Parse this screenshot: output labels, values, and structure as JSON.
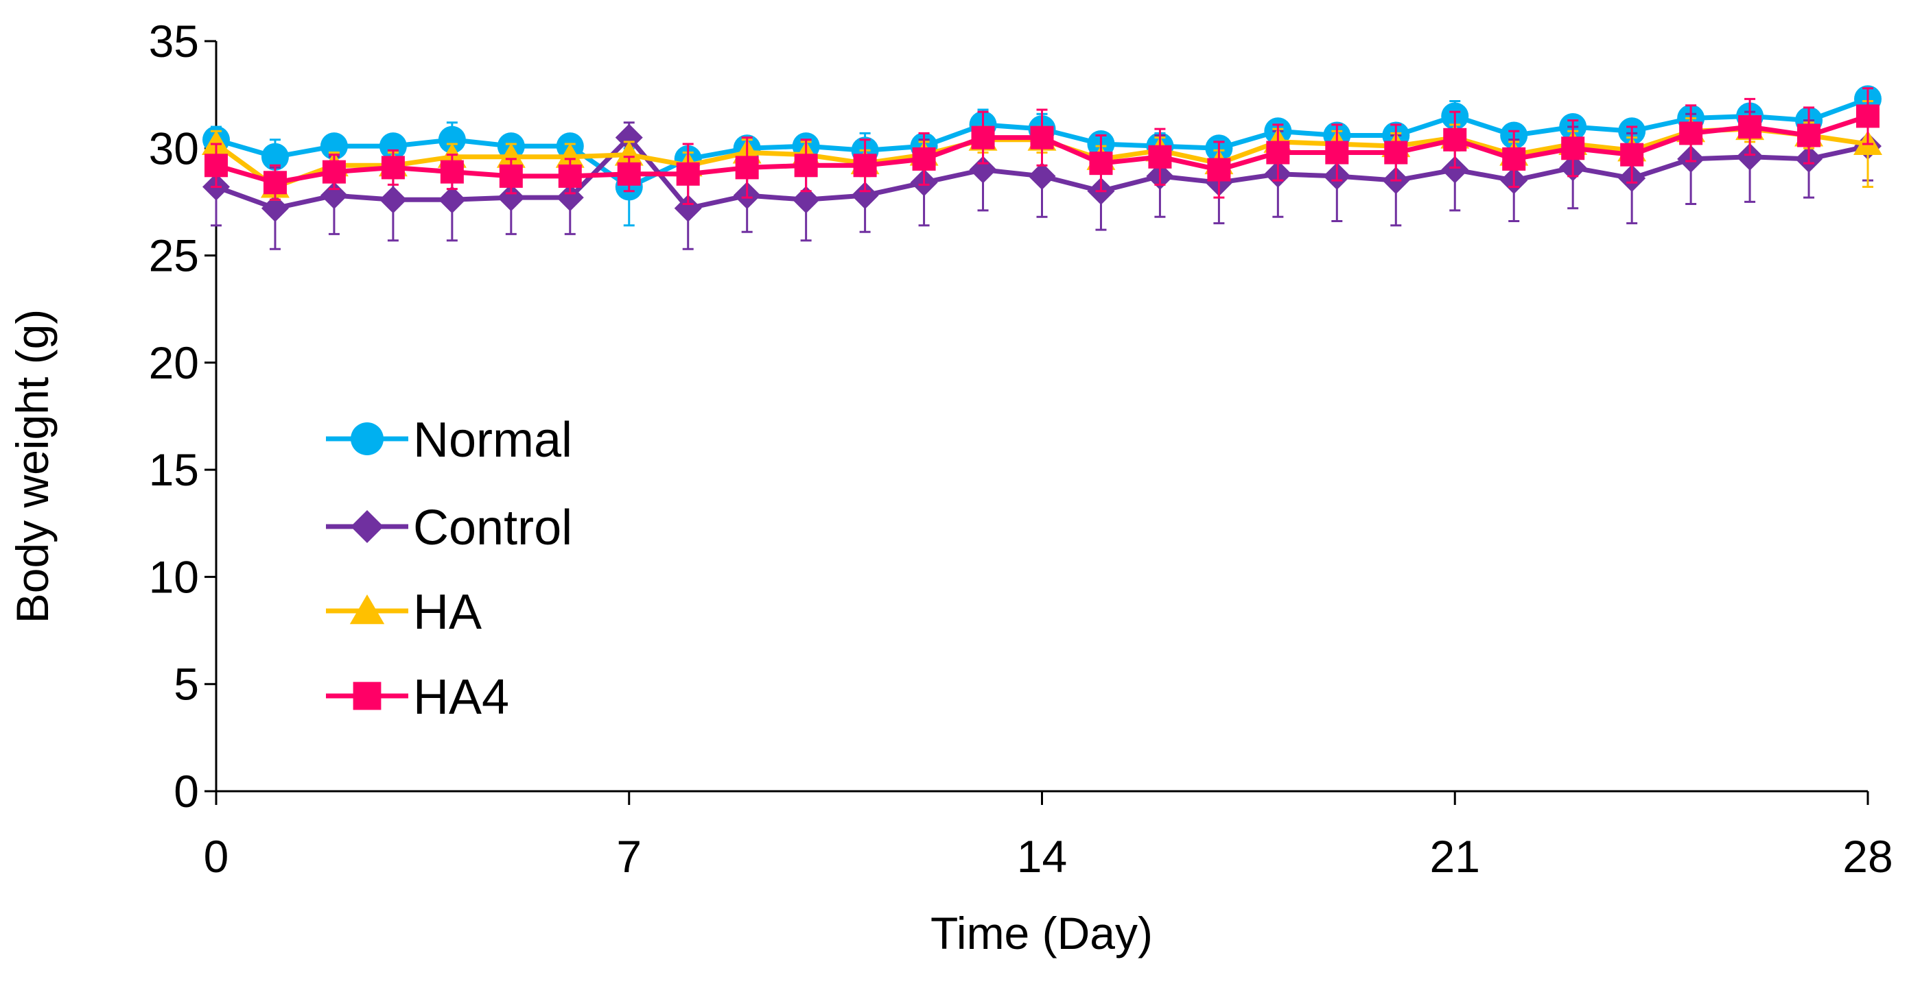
{
  "chart_data": {
    "type": "line",
    "title": "",
    "xlabel": "Time (Day)",
    "ylabel": "Body weight (g)",
    "xlim": [
      0,
      28
    ],
    "ylim": [
      0,
      35
    ],
    "xticks": [
      0,
      7,
      14,
      21,
      28
    ],
    "yticks": [
      0,
      5,
      10,
      15,
      20,
      25,
      30,
      35
    ],
    "x": [
      0,
      1,
      2,
      3,
      4,
      5,
      6,
      7,
      8,
      9,
      10,
      11,
      12,
      13,
      14,
      15,
      16,
      17,
      18,
      19,
      20,
      21,
      22,
      23,
      24,
      25,
      26,
      27,
      28
    ],
    "legend_position": "center-left",
    "series": [
      {
        "name": "Normal",
        "color": "#00B0F0",
        "marker": "circle",
        "values": [
          30.4,
          29.6,
          30.1,
          30.1,
          30.4,
          30.1,
          30.1,
          28.2,
          29.5,
          30.0,
          30.1,
          29.9,
          30.1,
          31.1,
          30.9,
          30.2,
          30.1,
          30.0,
          30.8,
          30.6,
          30.6,
          31.5,
          30.6,
          31.0,
          30.8,
          31.4,
          31.5,
          31.3,
          32.3
        ],
        "errors": [
          0.6,
          0.8,
          0.5,
          0.5,
          0.8,
          0.4,
          0.4,
          1.8,
          0.5,
          0.5,
          0.4,
          0.8,
          0.5,
          0.7,
          0.7,
          0.5,
          0.6,
          0.5,
          0.5,
          0.5,
          0.5,
          0.7,
          0.5,
          0.5,
          0.5,
          0.5,
          0.5,
          0.5,
          0.5
        ]
      },
      {
        "name": "Control",
        "color": "#7030A0",
        "marker": "diamond",
        "values": [
          28.2,
          27.2,
          27.8,
          27.6,
          27.6,
          27.7,
          27.7,
          30.5,
          27.2,
          27.8,
          27.6,
          27.8,
          28.4,
          29.0,
          28.7,
          28.0,
          28.7,
          28.4,
          28.8,
          28.7,
          28.5,
          29.0,
          28.5,
          29.1,
          28.6,
          29.5,
          29.6,
          29.5,
          30.1
        ],
        "errors": [
          1.8,
          1.9,
          1.8,
          1.9,
          1.9,
          1.7,
          1.7,
          0.7,
          1.9,
          1.7,
          1.9,
          1.7,
          2.0,
          1.9,
          1.9,
          1.8,
          1.9,
          1.9,
          2.0,
          2.1,
          2.1,
          1.9,
          1.9,
          1.9,
          2.1,
          2.1,
          2.1,
          1.8,
          1.6
        ]
      },
      {
        "name": "HA",
        "color": "#FFC000",
        "marker": "triangle",
        "values": [
          30.2,
          28.2,
          29.2,
          29.2,
          29.6,
          29.6,
          29.6,
          29.7,
          29.2,
          29.8,
          29.7,
          29.3,
          29.7,
          30.4,
          30.4,
          29.5,
          29.9,
          29.3,
          30.3,
          30.2,
          30.1,
          30.5,
          29.7,
          30.2,
          29.9,
          30.8,
          30.9,
          30.6,
          30.2
        ],
        "errors": [
          0.6,
          0.6,
          0.6,
          0.6,
          0.6,
          0.6,
          0.6,
          0.6,
          0.6,
          0.6,
          0.6,
          0.6,
          0.6,
          0.6,
          0.6,
          0.6,
          0.6,
          0.6,
          0.6,
          0.6,
          0.6,
          0.6,
          0.6,
          0.6,
          0.6,
          0.6,
          0.6,
          0.6,
          2.0
        ]
      },
      {
        "name": "HA4",
        "color": "#FF0066",
        "marker": "square",
        "values": [
          29.2,
          28.4,
          28.9,
          29.1,
          28.9,
          28.7,
          28.7,
          28.8,
          28.8,
          29.1,
          29.2,
          29.2,
          29.5,
          30.5,
          30.5,
          29.3,
          29.6,
          29.0,
          29.8,
          29.8,
          29.8,
          30.4,
          29.5,
          30.0,
          29.7,
          30.7,
          31.0,
          30.6,
          31.5
        ],
        "errors": [
          1.0,
          0.8,
          0.8,
          0.8,
          0.8,
          0.8,
          0.8,
          0.8,
          1.4,
          1.4,
          1.2,
          1.2,
          1.2,
          1.2,
          1.3,
          1.3,
          1.3,
          1.3,
          1.3,
          1.3,
          1.3,
          1.3,
          1.3,
          1.3,
          1.3,
          1.3,
          1.3,
          1.3,
          1.3
        ]
      }
    ]
  }
}
